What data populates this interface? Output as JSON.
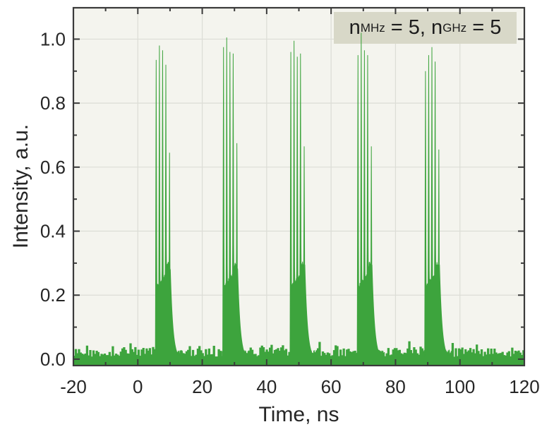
{
  "chart_data": {
    "type": "area",
    "title": "",
    "xlabel": "Time, ns",
    "ylabel": "Intensity, a.u.",
    "xlim": [
      -20,
      120
    ],
    "ylim": [
      -0.02,
      1.098
    ],
    "x_ticks": [
      -20,
      0,
      20,
      40,
      60,
      80,
      100,
      120
    ],
    "x_tick_labels": [
      "-20",
      "0",
      "20",
      "40",
      "60",
      "80",
      "100",
      "120"
    ],
    "x_minor_ticks": [
      -10,
      10,
      30,
      50,
      70,
      90,
      110
    ],
    "y_ticks": [
      0.0,
      0.2,
      0.4,
      0.6,
      0.8,
      1.0
    ],
    "y_tick_labels": [
      "0.0",
      "0.2",
      "0.4",
      "0.6",
      "0.8",
      "1.0"
    ],
    "y_minor_ticks": [
      0.1,
      0.3,
      0.5,
      0.7,
      0.9
    ],
    "grid": true,
    "legend_position": "top-right",
    "colors": {
      "series": "#3da43d",
      "plot_bg": "#f4f4ee",
      "grid": "#dcddd6",
      "frame": "#3a3a3a",
      "text": "#262626",
      "legend_bg": "#d8d8c8"
    },
    "annotation": {
      "var1": "n",
      "var1_sub": "MHz",
      "var1_rest": " = 5, ",
      "var2": "n",
      "var2_sub": "GHz",
      "var2_rest": " = 5"
    },
    "bursts": [
      {
        "start": 5.7,
        "pulse_offsets": [
          0,
          1.0,
          2.0,
          3.0,
          4.15
        ],
        "pulse_heights": [
          0.935,
          0.98,
          0.965,
          0.92,
          0.645
        ]
      },
      {
        "start": 26.6,
        "pulse_offsets": [
          0,
          1.0,
          2.0,
          3.0,
          4.15
        ],
        "pulse_heights": [
          0.975,
          1.005,
          0.96,
          0.955,
          0.675
        ]
      },
      {
        "start": 47.5,
        "pulse_offsets": [
          0,
          1.0,
          2.0,
          3.0,
          4.15
        ],
        "pulse_heights": [
          0.96,
          0.995,
          0.945,
          0.955,
          0.665
        ]
      },
      {
        "start": 68.35,
        "pulse_offsets": [
          0,
          1.0,
          2.0,
          3.0,
          4.15
        ],
        "pulse_heights": [
          0.95,
          1.02,
          0.965,
          0.95,
          0.665
        ]
      },
      {
        "start": 89.3,
        "pulse_offsets": [
          0,
          1.0,
          2.0,
          3.0,
          4.15
        ],
        "pulse_heights": [
          0.9,
          0.95,
          0.975,
          0.93,
          0.655
        ]
      }
    ],
    "pulse_halfwidth_ns": 0.24,
    "pedestal": {
      "height": 0.24,
      "bump_height": 0.3,
      "end_offset_ns": 4.35,
      "decay_ns": 0.8
    },
    "noise_floor": {
      "mean": 0.02,
      "max": 0.06,
      "step_ns": 0.5
    }
  }
}
